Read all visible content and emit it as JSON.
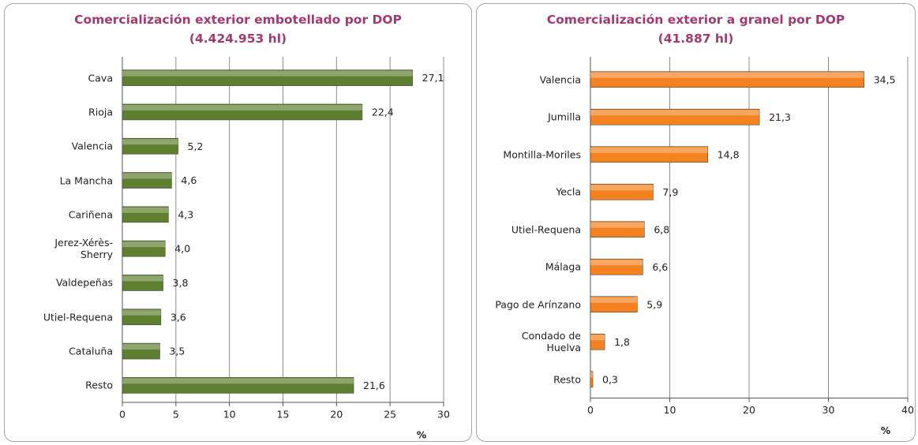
{
  "chart_data": [
    {
      "type": "bar",
      "orientation": "horizontal",
      "title": "Comercialización exterior embotellado por DOP",
      "subtitle": "(4.424.953 hl)",
      "categories": [
        "Cava",
        "Rioja",
        "Valencia",
        "La Mancha",
        "Cariñena",
        "Jerez-Xérès-\nSherry",
        "Valdepeñas",
        "Utiel-Requena",
        "Cataluña",
        "Resto"
      ],
      "values": [
        27.1,
        22.4,
        5.2,
        4.6,
        4.3,
        4.0,
        3.8,
        3.6,
        3.5,
        21.6
      ],
      "value_labels": [
        "27,1",
        "22,4",
        "5,2",
        "4,6",
        "4,3",
        "4,0",
        "3,8",
        "3,6",
        "3,5",
        "21,6"
      ],
      "color": "#5f7f30",
      "xlim": [
        0,
        30
      ],
      "xticks": [
        0,
        5,
        10,
        15,
        20,
        25,
        30
      ],
      "x_label": "%",
      "grid": true
    },
    {
      "type": "bar",
      "orientation": "horizontal",
      "title": "Comercialización exterior a granel por DOP",
      "subtitle": "(41.887 hl)",
      "categories": [
        "Valencia",
        "Jumilla",
        "Montilla-Moriles",
        "Yecla",
        "Utiel-Requena",
        "Málaga",
        "Pago de Arínzano",
        "Condado de\nHuelva",
        "Resto"
      ],
      "values": [
        34.5,
        21.3,
        14.8,
        7.9,
        6.8,
        6.6,
        5.9,
        1.8,
        0.3
      ],
      "value_labels": [
        "34,5",
        "21,3",
        "14,8",
        "7,9",
        "6,8",
        "6,6",
        "5,9",
        "1,8",
        "0,3"
      ],
      "color": "#f58220",
      "xlim": [
        0,
        40
      ],
      "xticks": [
        0,
        10,
        20,
        30,
        40
      ],
      "x_label": "%",
      "grid": true
    }
  ]
}
